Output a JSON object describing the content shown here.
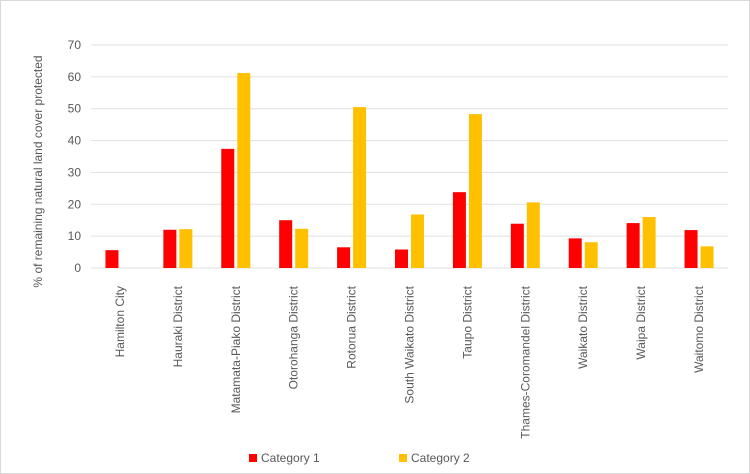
{
  "chart_data": {
    "type": "bar",
    "title": "",
    "xlabel": "",
    "ylabel": "% of remaining natural land cover protected",
    "ylim": [
      0,
      70
    ],
    "yticks": [
      0,
      10,
      20,
      30,
      40,
      50,
      60,
      70
    ],
    "grid": true,
    "legend_position": "bottom",
    "categories": [
      "Hamilton City",
      "Hauraki District",
      "Matamata-Piako District",
      "Otorohanga District",
      "Rotorua District",
      "South Waikato District",
      "Taupo District",
      "Thames-Coromandel District",
      "Waikato District",
      "Waipa District",
      "Waitomo District"
    ],
    "series": [
      {
        "name": "Category 1",
        "color": "#ff0000",
        "values": [
          5.6,
          12.0,
          37.4,
          15.0,
          6.5,
          5.8,
          23.8,
          13.9,
          9.3,
          14.1,
          11.9
        ]
      },
      {
        "name": "Category 2",
        "color": "#ffc000",
        "values": [
          null,
          12.2,
          61.2,
          12.3,
          50.5,
          16.8,
          48.3,
          20.6,
          8.1,
          16.0,
          6.8
        ]
      }
    ]
  }
}
